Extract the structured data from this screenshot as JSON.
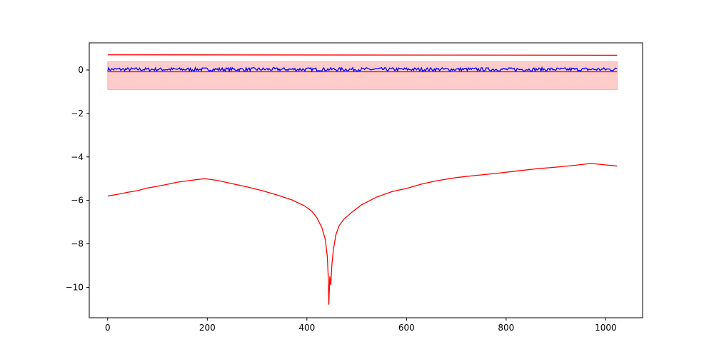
{
  "chart_data": {
    "type": "line",
    "title": "",
    "xlabel": "",
    "ylabel": "",
    "xlim": [
      -37,
      1074
    ],
    "ylim": [
      -11.4,
      1.25
    ],
    "grid": false,
    "legend": "none",
    "x_ticks": [
      {
        "value": 0,
        "label": "0"
      },
      {
        "value": 200,
        "label": "200"
      },
      {
        "value": 400,
        "label": "400"
      },
      {
        "value": 600,
        "label": "600"
      },
      {
        "value": 800,
        "label": "800"
      },
      {
        "value": 1000,
        "label": "1000"
      }
    ],
    "y_ticks": [
      {
        "value": 0,
        "label": "0"
      },
      {
        "value": -2,
        "label": "−2"
      },
      {
        "value": -4,
        "label": "−4"
      },
      {
        "value": -6,
        "label": "−6"
      },
      {
        "value": -8,
        "label": "−8"
      },
      {
        "value": -10,
        "label": "−10"
      }
    ],
    "band": {
      "x": [
        0,
        1023
      ],
      "y_low": -0.9,
      "y_high": 0.38,
      "color": "#ff0000",
      "opacity": 0.2
    },
    "series": [
      {
        "color": "#ff0000",
        "points": [
          [
            0,
            0.7
          ],
          [
            1023,
            0.68
          ]
        ]
      },
      {
        "color": "#ff0000",
        "points": [
          [
            0,
            -0.08
          ],
          [
            1023,
            -0.08
          ]
        ]
      },
      {
        "color": "#0000ff",
        "noise_amplitude": 0.08,
        "points": [
          [
            0,
            0.03
          ],
          [
            1023,
            0.03
          ]
        ]
      },
      {
        "color": "#ff0000",
        "points": [
          [
            0,
            -5.8
          ],
          [
            20,
            -5.72
          ],
          [
            40,
            -5.63
          ],
          [
            60,
            -5.55
          ],
          [
            80,
            -5.43
          ],
          [
            100,
            -5.35
          ],
          [
            120,
            -5.26
          ],
          [
            140,
            -5.16
          ],
          [
            160,
            -5.1
          ],
          [
            180,
            -5.04
          ],
          [
            195,
            -5.0
          ],
          [
            220,
            -5.08
          ],
          [
            250,
            -5.23
          ],
          [
            280,
            -5.38
          ],
          [
            310,
            -5.55
          ],
          [
            340,
            -5.75
          ],
          [
            370,
            -5.98
          ],
          [
            395,
            -6.25
          ],
          [
            410,
            -6.5
          ],
          [
            420,
            -6.8
          ],
          [
            430,
            -7.25
          ],
          [
            437,
            -7.8
          ],
          [
            441,
            -8.6
          ],
          [
            443,
            -9.6
          ],
          [
            444,
            -10.8
          ],
          [
            446,
            -9.5
          ],
          [
            448,
            -9.9
          ],
          [
            450,
            -9.0
          ],
          [
            453,
            -8.3
          ],
          [
            458,
            -7.6
          ],
          [
            465,
            -7.15
          ],
          [
            475,
            -6.85
          ],
          [
            490,
            -6.55
          ],
          [
            510,
            -6.2
          ],
          [
            540,
            -5.85
          ],
          [
            570,
            -5.6
          ],
          [
            600,
            -5.45
          ],
          [
            630,
            -5.25
          ],
          [
            660,
            -5.1
          ],
          [
            700,
            -4.95
          ],
          [
            740,
            -4.85
          ],
          [
            780,
            -4.76
          ],
          [
            820,
            -4.65
          ],
          [
            860,
            -4.55
          ],
          [
            900,
            -4.47
          ],
          [
            940,
            -4.38
          ],
          [
            970,
            -4.3
          ],
          [
            1000,
            -4.37
          ],
          [
            1023,
            -4.42
          ]
        ]
      }
    ]
  }
}
